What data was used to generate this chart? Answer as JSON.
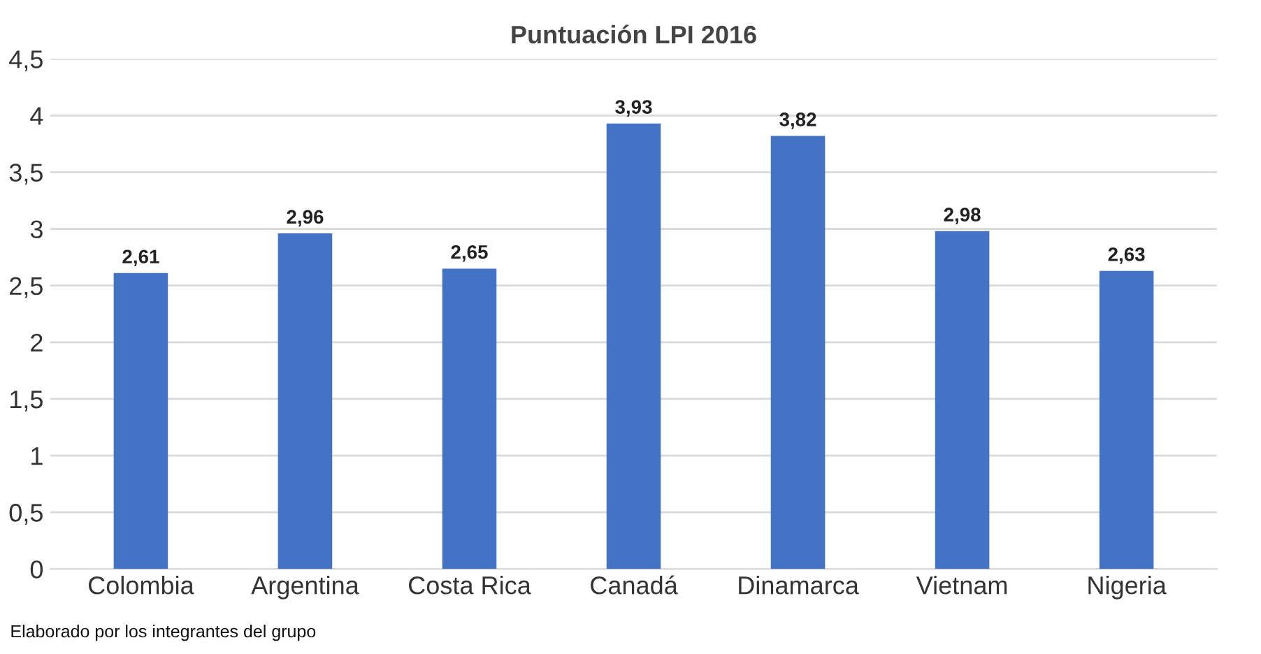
{
  "chart_data": {
    "type": "bar",
    "title": "Puntuación LPI 2016",
    "categories": [
      "Colombia",
      "Argentina",
      "Costa Rica",
      "Canadá",
      "Dinamarca",
      "Vietnam",
      "Nigeria"
    ],
    "values": [
      2.61,
      2.96,
      2.65,
      3.93,
      3.82,
      2.98,
      2.63
    ],
    "value_labels": [
      "2,61",
      "2,96",
      "2,65",
      "3,93",
      "3,82",
      "2,98",
      "2,63"
    ],
    "color": "#4472c4",
    "ylim": [
      0,
      4.5
    ],
    "yticks": [
      0,
      {
        "value": 0.5,
        "label": "0,5"
      },
      1,
      {
        "value": 1.5,
        "label": "1,5"
      },
      2,
      {
        "value": 2.5,
        "label": "2,5"
      },
      3,
      {
        "value": 3.5,
        "label": "3,5"
      },
      4,
      {
        "value": 4.5,
        "label": "4,5"
      }
    ],
    "grid": "y",
    "annotations": [
      "Elaborado por los integrantes del grupo"
    ]
  }
}
